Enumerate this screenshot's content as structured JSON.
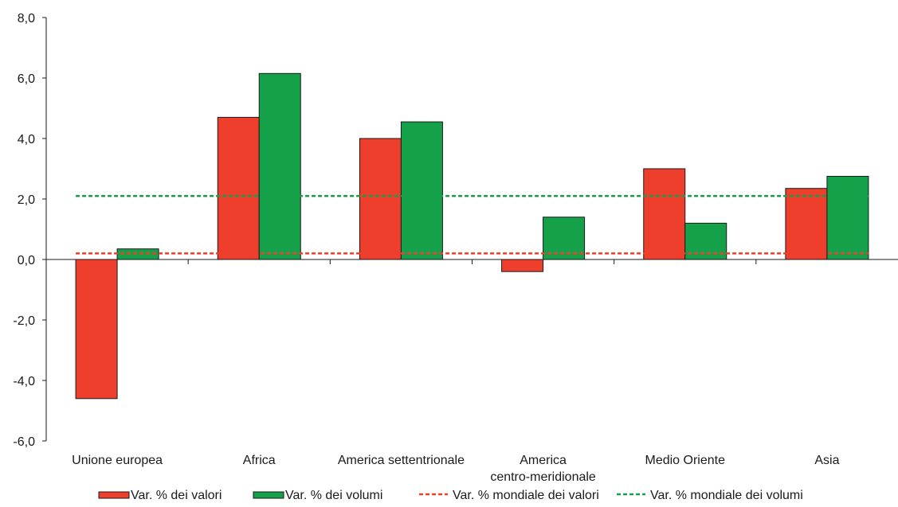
{
  "chart_data": {
    "type": "bar",
    "title": "",
    "xlabel": "",
    "ylabel": "",
    "categories": [
      [
        "Unione europea"
      ],
      [
        "Africa"
      ],
      [
        "America settentrionale"
      ],
      [
        "America",
        "centro-meridionale"
      ],
      [
        "Medio Oriente"
      ],
      [
        "Asia"
      ]
    ],
    "series": [
      {
        "name": "Var. %  dei valori",
        "color": "#ee3f2c",
        "values": [
          -4.6,
          4.7,
          4.0,
          -0.4,
          3.0,
          2.35
        ]
      },
      {
        "name": "Var. %  dei volumi",
        "color": "#15a04a",
        "values": [
          0.35,
          6.15,
          4.55,
          1.4,
          1.2,
          2.75
        ]
      }
    ],
    "reference_lines": [
      {
        "name": "Var. %  mondiale dei valori",
        "color": "#ee3f2c",
        "style": "dashed",
        "value": 0.2
      },
      {
        "name": "Var. %  mondiale dei volumi",
        "color": "#15a04a",
        "style": "dashed",
        "value": 2.1
      }
    ],
    "ylim": [
      -6,
      8
    ],
    "yticks": [
      -6,
      -4,
      -2,
      0,
      2,
      4,
      6,
      8
    ],
    "ytick_labels": [
      "-6,0",
      "-4,0",
      "-2,0",
      "0,0",
      "2,0",
      "4,0",
      "6,0",
      "8,0"
    ],
    "grid": false,
    "legend_position": "bottom"
  }
}
